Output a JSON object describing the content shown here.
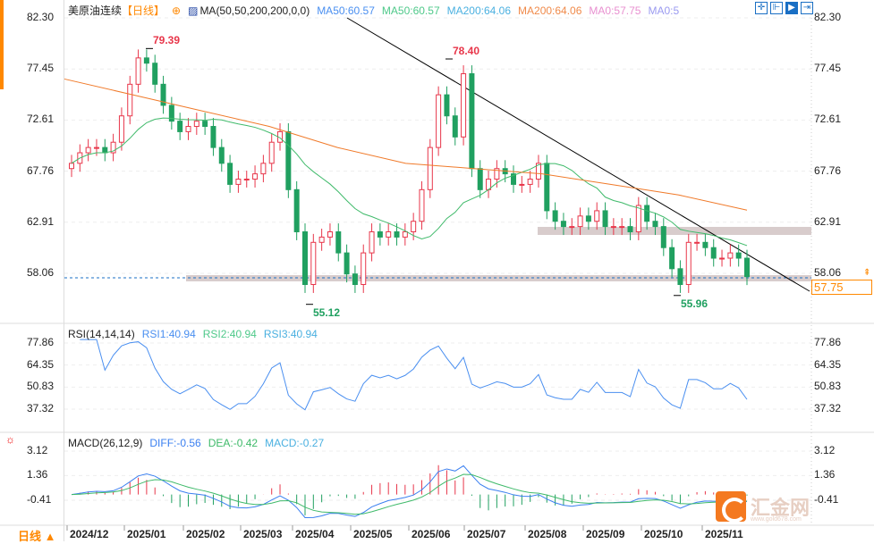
{
  "header": {
    "instrument": "美原油连续",
    "period_tag": "【日线】",
    "indicator": "MA(50,50,200,200,0,0)",
    "ma_values": [
      {
        "label": "MA50:60.57",
        "color": "#4a8ff0"
      },
      {
        "label": "MA50:60.57",
        "color": "#4fc98a"
      },
      {
        "label": "MA200:64.06",
        "color": "#4ab0e0"
      },
      {
        "label": "MA200:64.06",
        "color": "#f08a4a"
      },
      {
        "label": "MA0:57.75",
        "color": "#e890d0"
      },
      {
        "label": "MA0:5",
        "color": "#9a9af0"
      }
    ],
    "tools": [
      "crosshair-icon",
      "zoom-range-icon",
      "play-icon",
      "exit-icon"
    ]
  },
  "rsi": {
    "title": "RSI(14,14,14)",
    "values": [
      {
        "label": "RSI1:40.94",
        "color": "#4a8ff0"
      },
      {
        "label": "RSI2:40.94",
        "color": "#4fc98a"
      },
      {
        "label": "RSI3:40.94",
        "color": "#4ab0e0"
      }
    ]
  },
  "macd": {
    "title": "MACD(26,12,9)",
    "values": [
      {
        "label": "DIFF:-0.56",
        "color": "#3a7ff0"
      },
      {
        "label": "DEA:-0.42",
        "color": "#3fba6a"
      },
      {
        "label": "MACD:-0.27",
        "color": "#4ab0e0"
      }
    ]
  },
  "period_button": "日线 ▲",
  "last_price": "57.75",
  "watermark": {
    "text": "汇金网",
    "url": "www.gold678.com"
  },
  "colors": {
    "up": "#e8364a",
    "down": "#20a060",
    "ma50": "#3fba6a",
    "ma200": "#f07a2a",
    "trendline": "#000000",
    "band": "#d8cccc",
    "accent": "#ff8800"
  },
  "chart_data": {
    "type": "candlestick",
    "price_axis": {
      "ticks": [
        "82.30",
        "77.45",
        "72.61",
        "67.76",
        "62.91",
        "58.06"
      ],
      "range": [
        55.0,
        82.3
      ]
    },
    "rsi_axis": {
      "ticks": [
        "77.86",
        "64.35",
        "50.83",
        "37.32"
      ]
    },
    "macd_axis": {
      "ticks": [
        "3.12",
        "1.36",
        "-0.41"
      ]
    },
    "x_labels": [
      "2024/12",
      "2025/01",
      "2025/02",
      "2025/03",
      "2025/04",
      "2025/05",
      "2025/06",
      "2025/07",
      "2025/08",
      "2025/09",
      "2025/10",
      "2025/11"
    ],
    "closes": [
      68.5,
      69.5,
      70,
      70,
      69.5,
      70.5,
      73,
      76,
      78.5,
      78,
      76,
      74,
      72.5,
      71.5,
      72,
      72.5,
      72,
      70,
      68.5,
      66.5,
      67,
      67,
      67.5,
      68.5,
      70.5,
      71.5,
      66,
      62,
      57,
      61,
      61.5,
      62,
      60,
      58,
      57,
      60,
      62,
      61.5,
      62,
      61.5,
      62,
      63,
      66,
      70,
      75,
      73,
      71,
      77,
      68,
      66,
      67,
      68,
      67.5,
      66.5,
      66.5,
      67,
      68.5,
      64,
      63,
      62.5,
      62.5,
      63.5,
      63,
      64,
      62.5,
      62.5,
      62.5,
      62,
      64.5,
      63,
      62.5,
      60.5,
      58.5,
      57,
      61,
      61,
      60.5,
      59.5,
      59.5,
      60,
      59.5,
      57.75
    ],
    "ma200": [
      76.5,
      75,
      73.5,
      72,
      70,
      68.5,
      68,
      67.5,
      66.5,
      65.5,
      64.06
    ],
    "annotations": [
      {
        "label": "79.39",
        "type": "high",
        "color": "#e8364a"
      },
      {
        "label": "78.40",
        "type": "high",
        "color": "#e8364a"
      },
      {
        "label": "55.12",
        "type": "low",
        "color": "#20a060"
      },
      {
        "label": "55.96",
        "type": "low",
        "color": "#20a060"
      }
    ]
  }
}
